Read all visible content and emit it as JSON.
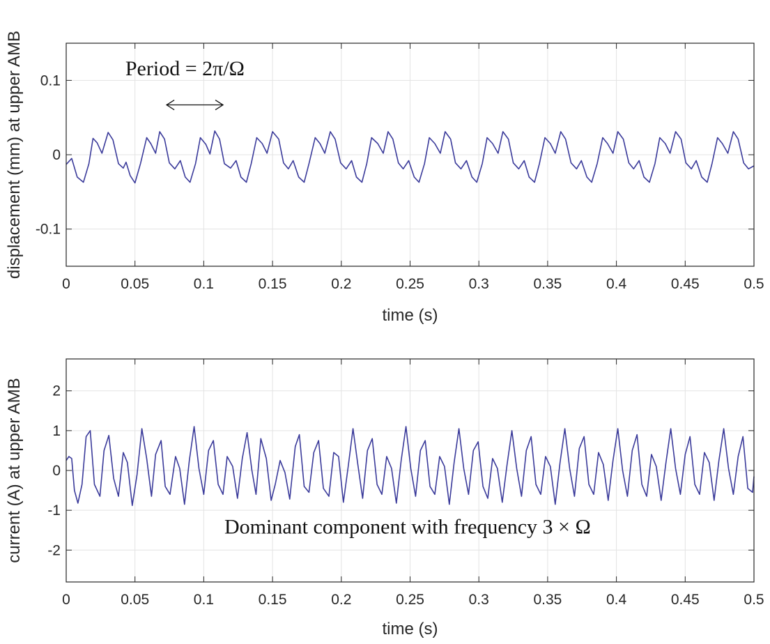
{
  "colors": {
    "line": "#3a3a9a",
    "grid": "#e3e3e3",
    "axis": "#262626",
    "text": "#262626"
  },
  "chart_data": [
    {
      "type": "line",
      "title": "",
      "xlabel": "time (s)",
      "ylabel": "displacement (mm) at upper AMB",
      "xlim": [
        0,
        0.5
      ],
      "ylim": [
        -0.15,
        0.15
      ],
      "xticks": [
        0,
        0.05,
        0.1,
        0.15,
        0.2,
        0.25,
        0.3,
        0.35,
        0.4,
        0.45,
        0.5
      ],
      "xtick_labels": [
        "0",
        "0.05",
        "0.1",
        "0.15",
        "0.2",
        "0.25",
        "0.3",
        "0.35",
        "0.4",
        "0.45",
        "0.5"
      ],
      "yticks": [
        -0.1,
        0,
        0.1
      ],
      "ytick_labels": [
        "-0.1",
        "0",
        "0.1"
      ],
      "grid": true,
      "annotation": {
        "text": "Period = 2π/Ω",
        "arrow_from_x": 0.073,
        "arrow_to_x": 0.114,
        "arrow_y": 0.067,
        "text_x": 0.043,
        "text_y": 0.107
      },
      "series": [
        {
          "name": "displacement",
          "x": [
            0.0,
            0.004,
            0.008,
            0.0125,
            0.0165,
            0.0195,
            0.0225,
            0.026,
            0.0305,
            0.034,
            0.038,
            0.0415,
            0.0435,
            0.0465,
            0.05,
            0.054,
            0.0585,
            0.0615,
            0.065,
            0.068,
            0.0715,
            0.075,
            0.079,
            0.083,
            0.0865,
            0.09,
            0.094,
            0.0975,
            0.1015,
            0.1045,
            0.108,
            0.1115,
            0.115,
            0.1195,
            0.1235,
            0.127,
            0.131,
            0.1345,
            0.1385,
            0.1425,
            0.146,
            0.15,
            0.1545,
            0.158,
            0.1615,
            0.165,
            0.169,
            0.173,
            0.1765,
            0.181,
            0.1845,
            0.188,
            0.192,
            0.1955,
            0.1995,
            0.2035,
            0.2075,
            0.211,
            0.215,
            0.2185,
            0.222,
            0.2265,
            0.2305,
            0.234,
            0.2375,
            0.2415,
            0.245,
            0.249,
            0.253,
            0.2565,
            0.2605,
            0.264,
            0.268,
            0.272,
            0.2755,
            0.2795,
            0.283,
            0.287,
            0.291,
            0.295,
            0.2985,
            0.3025,
            0.306,
            0.31,
            0.314,
            0.3175,
            0.3215,
            0.325,
            0.329,
            0.333,
            0.3365,
            0.3405,
            0.344,
            0.348,
            0.352,
            0.3555,
            0.3595,
            0.363,
            0.367,
            0.371,
            0.3745,
            0.3785,
            0.382,
            0.386,
            0.39,
            0.3935,
            0.3975,
            0.401,
            0.405,
            0.409,
            0.4125,
            0.4165,
            0.42,
            0.424,
            0.428,
            0.4315,
            0.4355,
            0.439,
            0.443,
            0.447,
            0.4505,
            0.4545,
            0.458,
            0.462,
            0.466,
            0.4695,
            0.4735,
            0.477,
            0.481,
            0.485,
            0.4885,
            0.4925,
            0.496,
            0.5
          ],
          "y": [
            -0.013,
            -0.005,
            -0.03,
            -0.037,
            -0.012,
            0.022,
            0.016,
            0.002,
            0.03,
            0.02,
            -0.012,
            -0.018,
            -0.01,
            -0.028,
            -0.038,
            -0.012,
            0.023,
            0.015,
            0.002,
            0.031,
            0.021,
            -0.011,
            -0.019,
            -0.008,
            -0.03,
            -0.037,
            -0.012,
            0.023,
            0.014,
            0.001,
            0.032,
            0.021,
            -0.012,
            -0.018,
            -0.008,
            -0.03,
            -0.037,
            -0.012,
            0.023,
            0.015,
            0.002,
            0.031,
            0.021,
            -0.011,
            -0.019,
            -0.008,
            -0.03,
            -0.037,
            -0.012,
            0.023,
            0.015,
            0.002,
            0.031,
            0.021,
            -0.011,
            -0.019,
            -0.008,
            -0.03,
            -0.037,
            -0.012,
            0.023,
            0.015,
            0.002,
            0.031,
            0.021,
            -0.011,
            -0.019,
            -0.008,
            -0.03,
            -0.037,
            -0.012,
            0.023,
            0.015,
            0.002,
            0.031,
            0.021,
            -0.011,
            -0.019,
            -0.008,
            -0.03,
            -0.037,
            -0.012,
            0.023,
            0.015,
            0.002,
            0.031,
            0.021,
            -0.011,
            -0.019,
            -0.008,
            -0.03,
            -0.037,
            -0.012,
            0.023,
            0.015,
            0.002,
            0.031,
            0.021,
            -0.011,
            -0.019,
            -0.008,
            -0.03,
            -0.037,
            -0.012,
            0.023,
            0.015,
            0.002,
            0.031,
            0.021,
            -0.011,
            -0.019,
            -0.008,
            -0.03,
            -0.037,
            -0.012,
            0.023,
            0.015,
            0.002,
            0.031,
            0.021,
            -0.011,
            -0.019,
            -0.008,
            -0.03,
            -0.037,
            -0.012,
            0.023,
            0.015,
            0.002,
            0.031,
            0.021,
            -0.011,
            -0.019,
            -0.015
          ]
        }
      ]
    },
    {
      "type": "line",
      "title": "",
      "xlabel": "time (s)",
      "ylabel": "current (A) at upper AMB",
      "xlim": [
        0,
        0.5
      ],
      "ylim": [
        -2.8,
        2.8
      ],
      "xticks": [
        0,
        0.05,
        0.1,
        0.15,
        0.2,
        0.25,
        0.3,
        0.35,
        0.4,
        0.45,
        0.5
      ],
      "xtick_labels": [
        "0",
        "0.05",
        "0.1",
        "0.15",
        "0.2",
        "0.25",
        "0.3",
        "0.35",
        "0.4",
        "0.45",
        "0.5"
      ],
      "yticks": [
        -2,
        -1,
        0,
        1,
        2
      ],
      "ytick_labels": [
        "-2",
        "-1",
        "0",
        "1",
        "2"
      ],
      "grid": true,
      "annotation": {
        "text": "Dominant component with frequency  3 × Ω",
        "text_x": 0.115,
        "text_y": -1.58
      },
      "series": [
        {
          "name": "current",
          "x": [
            0.0,
            0.002,
            0.004,
            0.006,
            0.0085,
            0.0115,
            0.0145,
            0.0175,
            0.0205,
            0.0245,
            0.0275,
            0.031,
            0.0345,
            0.038,
            0.0415,
            0.0445,
            0.048,
            0.0515,
            0.055,
            0.0585,
            0.062,
            0.065,
            0.069,
            0.072,
            0.0755,
            0.0795,
            0.0825,
            0.086,
            0.0895,
            0.093,
            0.0965,
            0.1,
            0.1035,
            0.107,
            0.1105,
            0.114,
            0.117,
            0.121,
            0.1245,
            0.128,
            0.1315,
            0.135,
            0.138,
            0.1415,
            0.1455,
            0.149,
            0.152,
            0.1555,
            0.159,
            0.1625,
            0.1665,
            0.1695,
            0.173,
            0.1765,
            0.18,
            0.1835,
            0.187,
            0.191,
            0.1945,
            0.198,
            0.2015,
            0.205,
            0.2085,
            0.212,
            0.2155,
            0.219,
            0.2225,
            0.226,
            0.2295,
            0.233,
            0.2365,
            0.24,
            0.2435,
            0.247,
            0.2505,
            0.254,
            0.2575,
            0.261,
            0.2645,
            0.268,
            0.2715,
            0.275,
            0.2785,
            0.282,
            0.2855,
            0.289,
            0.2925,
            0.296,
            0.2995,
            0.303,
            0.3065,
            0.31,
            0.3135,
            0.317,
            0.3205,
            0.324,
            0.3275,
            0.331,
            0.3345,
            0.338,
            0.3415,
            0.345,
            0.3485,
            0.352,
            0.3555,
            0.359,
            0.3625,
            0.366,
            0.3695,
            0.373,
            0.3765,
            0.38,
            0.3835,
            0.387,
            0.3905,
            0.394,
            0.3975,
            0.401,
            0.4045,
            0.408,
            0.4115,
            0.415,
            0.4185,
            0.422,
            0.4255,
            0.429,
            0.4325,
            0.436,
            0.4395,
            0.443,
            0.4465,
            0.45,
            0.4535,
            0.457,
            0.4605,
            0.464,
            0.4675,
            0.471,
            0.4745,
            0.478,
            0.4815,
            0.485,
            0.4885,
            0.492,
            0.4955,
            0.499,
            0.5
          ],
          "y": [
            0.25,
            0.35,
            0.3,
            -0.5,
            -0.82,
            -0.35,
            0.85,
            1.0,
            -0.35,
            -0.65,
            0.5,
            0.88,
            -0.2,
            -0.65,
            0.45,
            0.2,
            -0.88,
            -0.1,
            1.05,
            0.3,
            -0.65,
            0.4,
            0.75,
            -0.4,
            -0.6,
            0.35,
            0.05,
            -0.85,
            0.25,
            1.1,
            0.05,
            -0.6,
            0.5,
            0.75,
            -0.35,
            -0.6,
            0.35,
            0.1,
            -0.7,
            0.3,
            0.95,
            0.0,
            -0.6,
            0.8,
            0.3,
            -0.75,
            -0.35,
            0.25,
            -0.05,
            -0.72,
            0.6,
            0.9,
            -0.4,
            -0.55,
            0.45,
            0.75,
            -0.45,
            -0.65,
            0.45,
            0.35,
            -0.8,
            0.1,
            1.05,
            0.15,
            -0.7,
            0.5,
            0.8,
            -0.35,
            -0.6,
            0.35,
            0.05,
            -0.82,
            0.25,
            1.1,
            0.05,
            -0.65,
            0.5,
            0.75,
            -0.4,
            -0.6,
            0.35,
            0.1,
            -0.85,
            0.2,
            1.05,
            0.05,
            -0.6,
            0.5,
            0.72,
            -0.4,
            -0.7,
            0.3,
            0.05,
            -0.8,
            0.15,
            1.0,
            0.05,
            -0.65,
            0.5,
            0.85,
            -0.35,
            -0.6,
            0.35,
            0.1,
            -0.85,
            0.2,
            1.05,
            0.05,
            -0.65,
            0.55,
            0.85,
            -0.35,
            -0.6,
            0.45,
            0.15,
            -0.75,
            0.25,
            1.05,
            0.0,
            -0.65,
            0.5,
            0.9,
            -0.35,
            -0.65,
            0.4,
            0.1,
            -0.75,
            0.2,
            1.05,
            0.05,
            -0.6,
            0.4,
            0.85,
            -0.35,
            -0.6,
            0.45,
            0.2,
            -0.75,
            0.25,
            1.05,
            0.05,
            -0.6,
            0.35,
            0.85,
            -0.45,
            -0.55,
            -0.15
          ]
        }
      ]
    }
  ]
}
